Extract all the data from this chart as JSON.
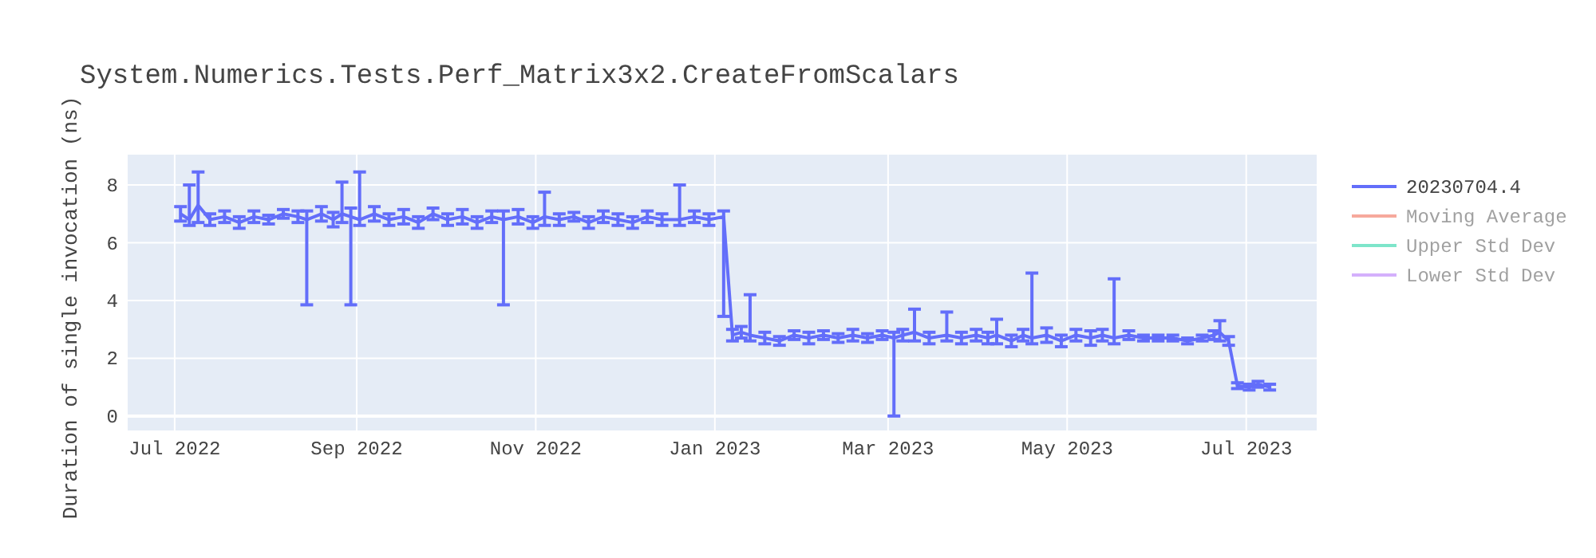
{
  "chart_data": {
    "type": "line",
    "title": "System.Numerics.Tests.Perf_Matrix3x2.CreateFromScalars",
    "ylabel": "Duration of single invocation (ns)",
    "x": [
      "2022-07-03",
      "2022-07-06",
      "2022-07-09",
      "2022-07-13",
      "2022-07-18",
      "2022-07-23",
      "2022-07-28",
      "2022-08-02",
      "2022-08-07",
      "2022-08-12",
      "2022-08-15",
      "2022-08-20",
      "2022-08-24",
      "2022-08-27",
      "2022-08-30",
      "2022-09-02",
      "2022-09-07",
      "2022-09-12",
      "2022-09-17",
      "2022-09-22",
      "2022-09-27",
      "2022-10-02",
      "2022-10-07",
      "2022-10-12",
      "2022-10-17",
      "2022-10-21",
      "2022-10-26",
      "2022-10-31",
      "2022-11-04",
      "2022-11-09",
      "2022-11-14",
      "2022-11-19",
      "2022-11-24",
      "2022-11-29",
      "2022-12-04",
      "2022-12-09",
      "2022-12-14",
      "2022-12-20",
      "2022-12-25",
      "2022-12-30",
      "2023-01-04",
      "2023-01-07",
      "2023-01-10",
      "2023-01-13",
      "2023-01-18",
      "2023-01-23",
      "2023-01-28",
      "2023-02-02",
      "2023-02-07",
      "2023-02-12",
      "2023-02-17",
      "2023-02-22",
      "2023-02-27",
      "2023-03-03",
      "2023-03-06",
      "2023-03-10",
      "2023-03-15",
      "2023-03-21",
      "2023-03-26",
      "2023-03-31",
      "2023-04-04",
      "2023-04-07",
      "2023-04-12",
      "2023-04-16",
      "2023-04-19",
      "2023-04-24",
      "2023-04-29",
      "2023-05-04",
      "2023-05-09",
      "2023-05-13",
      "2023-05-17",
      "2023-05-22",
      "2023-05-27",
      "2023-06-01",
      "2023-06-06",
      "2023-06-11",
      "2023-06-16",
      "2023-06-20",
      "2023-06-22",
      "2023-06-25",
      "2023-06-28",
      "2023-07-02",
      "2023-07-05",
      "2023-07-09"
    ],
    "series": [
      {
        "name": "20230704.4",
        "color": "#636efa",
        "values": [
          7.0,
          6.8,
          7.3,
          6.8,
          6.9,
          6.7,
          6.9,
          6.8,
          7.0,
          6.9,
          6.8,
          7.0,
          6.8,
          7.0,
          6.9,
          6.8,
          7.0,
          6.8,
          6.9,
          6.7,
          7.0,
          6.8,
          6.9,
          6.7,
          6.9,
          6.8,
          6.9,
          6.7,
          6.9,
          6.8,
          6.9,
          6.7,
          6.9,
          6.8,
          6.7,
          6.9,
          6.8,
          6.8,
          6.9,
          6.8,
          6.9,
          2.8,
          2.9,
          2.8,
          2.7,
          2.6,
          2.8,
          2.7,
          2.8,
          2.7,
          2.8,
          2.7,
          2.8,
          2.7,
          2.8,
          2.9,
          2.7,
          2.8,
          2.7,
          2.8,
          2.7,
          2.8,
          2.6,
          2.8,
          2.7,
          2.8,
          2.6,
          2.8,
          2.7,
          2.8,
          2.7,
          2.8,
          2.7,
          2.7,
          2.7,
          2.6,
          2.7,
          2.8,
          2.9,
          2.6,
          1.05,
          1.0,
          1.1,
          1.0
        ],
        "errors": [
          0.25,
          [
            6.6,
            8.0
          ],
          [
            6.7,
            8.45
          ],
          0.2,
          0.2,
          0.2,
          0.2,
          0.15,
          0.15,
          0.2,
          [
            3.85,
            7.1
          ],
          0.25,
          0.25,
          [
            6.7,
            8.1
          ],
          [
            3.85,
            7.2
          ],
          [
            6.6,
            8.45
          ],
          0.25,
          0.2,
          0.25,
          0.2,
          0.2,
          0.2,
          0.25,
          0.2,
          0.2,
          [
            3.85,
            7.1
          ],
          0.25,
          0.2,
          [
            6.6,
            7.75
          ],
          0.2,
          0.15,
          0.2,
          0.2,
          0.2,
          0.2,
          0.2,
          0.2,
          [
            6.6,
            8.0
          ],
          0.2,
          0.2,
          [
            3.45,
            7.1
          ],
          0.2,
          0.2,
          [
            2.6,
            4.2
          ],
          0.2,
          0.15,
          0.15,
          0.2,
          0.15,
          0.15,
          0.2,
          0.15,
          0.15,
          [
            0,
            2.9
          ],
          0.2,
          [
            2.6,
            3.7
          ],
          0.2,
          [
            2.6,
            3.6
          ],
          0.2,
          0.2,
          0.2,
          [
            2.5,
            3.35
          ],
          0.2,
          0.2,
          [
            2.5,
            4.95
          ],
          0.25,
          0.2,
          0.2,
          0.25,
          0.2,
          [
            2.5,
            4.75
          ],
          0.15,
          0.1,
          0.1,
          0.1,
          0.1,
          0.1,
          0.15,
          [
            2.6,
            3.3
          ],
          0.15,
          0.1,
          0.1,
          0.1,
          0.1
        ]
      },
      {
        "name": "Moving Average",
        "color": "#ef553b",
        "values": [
          null,
          null,
          null,
          null,
          null,
          null,
          null,
          null,
          null,
          null,
          null,
          null,
          null,
          null,
          null,
          null,
          null,
          null,
          null,
          null,
          null,
          null,
          null,
          null,
          null,
          null,
          null,
          null,
          null,
          null,
          null,
          null,
          null,
          null,
          null,
          null,
          null,
          null,
          null,
          null,
          null,
          null,
          null,
          null,
          null,
          null,
          null,
          null,
          null,
          null,
          null,
          null,
          null,
          null,
          null,
          null,
          null,
          null,
          null,
          null,
          null,
          null,
          null,
          null,
          null,
          null,
          null,
          null,
          null,
          null,
          null,
          null,
          null,
          null,
          null,
          null,
          null,
          null,
          null,
          null,
          null,
          null,
          null,
          null
        ]
      },
      {
        "name": "Upper Std Dev",
        "color": "#00cc96",
        "values": [
          null,
          null,
          null,
          null,
          null,
          null,
          null,
          null,
          null,
          null,
          null,
          null,
          null,
          null,
          null,
          null,
          null,
          null,
          null,
          null,
          null,
          null,
          null,
          null,
          null,
          null,
          null,
          null,
          null,
          null,
          null,
          null,
          null,
          null,
          null,
          null,
          null,
          null,
          null,
          null,
          null,
          null,
          null,
          null,
          null,
          null,
          null,
          null,
          null,
          null,
          null,
          null,
          null,
          null,
          null,
          null,
          null,
          null,
          null,
          null,
          null,
          null,
          null,
          null,
          null,
          null,
          null,
          null,
          null,
          null,
          null,
          null,
          null,
          null,
          null,
          null,
          null,
          null,
          null,
          null,
          null,
          null,
          null,
          null
        ]
      },
      {
        "name": "Lower Std Dev",
        "color": "#ab63fa",
        "values": [
          null,
          null,
          null,
          null,
          null,
          null,
          null,
          null,
          null,
          null,
          null,
          null,
          null,
          null,
          null,
          null,
          null,
          null,
          null,
          null,
          null,
          null,
          null,
          null,
          null,
          null,
          null,
          null,
          null,
          null,
          null,
          null,
          null,
          null,
          null,
          null,
          null,
          null,
          null,
          null,
          null,
          null,
          null,
          null,
          null,
          null,
          null,
          null,
          null,
          null,
          null,
          null,
          null,
          null,
          null,
          null,
          null,
          null,
          null,
          null,
          null,
          null,
          null,
          null,
          null,
          null,
          null,
          null,
          null,
          null,
          null,
          null,
          null,
          null,
          null,
          null,
          null,
          null,
          null,
          null,
          null,
          null,
          null,
          null
        ]
      }
    ],
    "xlim": [
      "2022-06-15",
      "2023-07-25"
    ],
    "xticks": [
      {
        "value": "2022-07-01",
        "label": "Jul 2022"
      },
      {
        "value": "2022-09-01",
        "label": "Sep 2022"
      },
      {
        "value": "2022-11-01",
        "label": "Nov 2022"
      },
      {
        "value": "2023-01-01",
        "label": "Jan 2023"
      },
      {
        "value": "2023-03-01",
        "label": "Mar 2023"
      },
      {
        "value": "2023-05-01",
        "label": "May 2023"
      },
      {
        "value": "2023-07-01",
        "label": "Jul 2023"
      }
    ],
    "ylim": [
      -0.5,
      9.05
    ],
    "yticks": [
      0,
      2,
      4,
      6,
      8
    ],
    "grid": true,
    "legend": "right",
    "marker": "none",
    "line_style": "solid"
  }
}
